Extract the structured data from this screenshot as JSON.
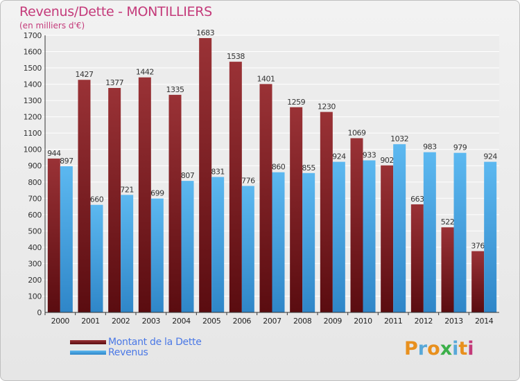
{
  "title": "Revenus/Dette - MONTILLIERS",
  "subtitle": "(en milliers d'€)",
  "logo": {
    "text": "Proxiti",
    "colors": [
      "#e8901e",
      "#58a8d8",
      "#e8901e",
      "#3cb04a",
      "#58a8d8",
      "#e8901e",
      "#c43a7a"
    ]
  },
  "colors": {
    "dette": "#7a1e22",
    "revenus": "#4aa8e4",
    "title": "#c43a7a",
    "legend_text": "#4a78e6"
  },
  "chart_data": {
    "type": "bar",
    "categories": [
      "2000",
      "2001",
      "2002",
      "2003",
      "2004",
      "2005",
      "2006",
      "2007",
      "2008",
      "2009",
      "2010",
      "2011",
      "2012",
      "2013",
      "2014"
    ],
    "series": [
      {
        "name": "Montant de la Dette",
        "values": [
          944,
          1427,
          1377,
          1442,
          1335,
          1683,
          1538,
          1401,
          1259,
          1230,
          1069,
          902,
          663,
          522,
          376
        ]
      },
      {
        "name": "Revenus",
        "values": [
          897,
          660,
          721,
          699,
          807,
          831,
          776,
          860,
          855,
          924,
          933,
          1032,
          983,
          979,
          924
        ]
      }
    ],
    "ylim": [
      0,
      1700
    ],
    "yticks": [
      "0",
      "100",
      "200",
      "300",
      "400",
      "500",
      "600",
      "700",
      "800",
      "900",
      "1000",
      "1100",
      "1200",
      "1300",
      "1400",
      "1500",
      "1600",
      "1700"
    ],
    "grid": true,
    "legend": "bottom-left"
  }
}
